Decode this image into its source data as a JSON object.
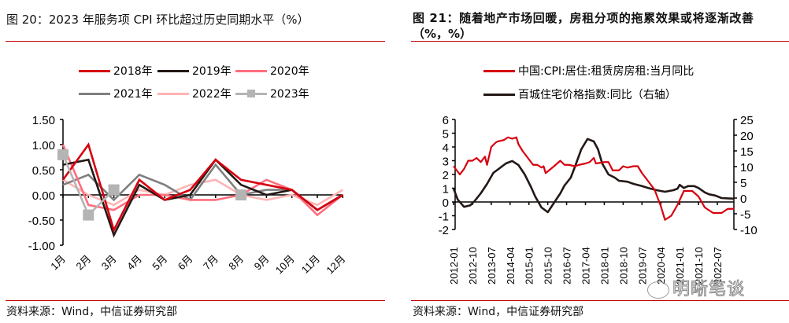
{
  "left_panel": {
    "title": "图 20：2023 年服务项 CPI 环比超过历史同期水平（%）",
    "source": "资料来源：Wind，中信证券研究部"
  },
  "right_panel": {
    "title_line1": "图  21：随着地产市场回暖，房租分项的拖累效果或将逐渐改善",
    "title_line2": "（%，%）",
    "source": "资料来源：Wind，中信证券研究部",
    "watermark": "明晰笔谈"
  },
  "chart_data": [
    {
      "type": "line",
      "title": "2023 年服务项 CPI 环比超过历史同期水平（%）",
      "categories": [
        "1月",
        "2月",
        "3月",
        "4月",
        "5月",
        "6月",
        "7月",
        "8月",
        "9月",
        "10月",
        "11月",
        "12月"
      ],
      "ylim": [
        -1.0,
        1.5
      ],
      "yticks": [
        "1.50",
        "1.00",
        "0.50",
        "0.00",
        "-0.50",
        "-1.00"
      ],
      "ytick_values": [
        1.5,
        1.0,
        0.5,
        0.0,
        -0.5,
        -1.0
      ],
      "legend_position": "top",
      "series": [
        {
          "name": "2018年",
          "color": "#d7000f",
          "values": [
            0.3,
            1.0,
            -0.7,
            0.3,
            -0.1,
            0.1,
            0.7,
            0.3,
            0.2,
            0.1,
            -0.3,
            0.0
          ]
        },
        {
          "name": "2019年",
          "color": "#231815",
          "values": [
            0.6,
            0.7,
            -0.8,
            0.2,
            -0.1,
            0.0,
            0.7,
            0.2,
            0.0,
            0.1,
            -0.3,
            0.0
          ]
        },
        {
          "name": "2020年",
          "color": "#ff6e7f",
          "values": [
            1.0,
            -0.2,
            -0.3,
            0.0,
            0.0,
            -0.1,
            -0.1,
            0.0,
            0.3,
            0.1,
            -0.4,
            0.0
          ]
        },
        {
          "name": "2021年",
          "color": "#7f7f7f",
          "values": [
            0.2,
            0.4,
            -0.1,
            0.4,
            0.2,
            -0.1,
            0.6,
            0.0,
            0.1,
            0.1,
            -0.3,
            0.0
          ]
        },
        {
          "name": "2022年",
          "color": "#ffb4b4",
          "values": [
            0.3,
            0.0,
            -0.2,
            0.1,
            0.0,
            0.2,
            0.3,
            0.0,
            -0.1,
            0.0,
            -0.2,
            0.1
          ]
        },
        {
          "name": "2023年",
          "color": "#b4b4b4",
          "marker": "square",
          "values": [
            0.8,
            -0.4,
            0.1,
            null,
            null,
            null,
            null,
            0.0,
            null,
            null,
            null,
            null
          ]
        }
      ]
    },
    {
      "type": "line",
      "title": "随着地产市场回暖，房租分项的拖累效果或将逐渐改善（%，%）",
      "xticks": [
        "2012-01",
        "2012-10",
        "2013-07",
        "2014-04",
        "2015-01",
        "2015-10",
        "2016-07",
        "2017-04",
        "2018-01",
        "2018-10",
        "2019-07",
        "2020-04",
        "2021-01",
        "2021-10",
        "2022-07"
      ],
      "ylim_left": [
        -2,
        6
      ],
      "yticks_left": [
        6,
        5,
        4,
        3,
        2,
        1,
        0,
        -1,
        -2
      ],
      "ylim_right": [
        -10,
        25
      ],
      "yticks_right": [
        25,
        20,
        15,
        10,
        5,
        0,
        -5,
        -10
      ],
      "legend_position": "top",
      "series": [
        {
          "name": "中国:CPI:居住:租赁房房租:当月同比",
          "axis": "left",
          "color": "#d7000f",
          "x": [
            "2012-01",
            "2012-04",
            "2012-06",
            "2012-08",
            "2012-10",
            "2012-12",
            "2013-02",
            "2013-04",
            "2013-05",
            "2013-07",
            "2013-09",
            "2013-10",
            "2014-01",
            "2014-03",
            "2014-05",
            "2014-07",
            "2014-08",
            "2014-10",
            "2015-01",
            "2015-03",
            "2015-05",
            "2015-07",
            "2015-08",
            "2015-09",
            "2016-01",
            "2016-04",
            "2016-06",
            "2016-08",
            "2016-11",
            "2017-01",
            "2017-04",
            "2017-06",
            "2017-08",
            "2017-09",
            "2018-01",
            "2018-03",
            "2018-05",
            "2018-08",
            "2018-10",
            "2018-12",
            "2019-03",
            "2019-05",
            "2019-07",
            "2019-10",
            "2020-01",
            "2020-04",
            "2020-06",
            "2020-09",
            "2020-12",
            "2021-03",
            "2021-07",
            "2021-10",
            "2022-01",
            "2022-05",
            "2022-09",
            "2022-12",
            "2023-03"
          ],
          "values": [
            2.6,
            2.0,
            2.4,
            3.0,
            3.0,
            3.2,
            2.9,
            3.3,
            2.7,
            4.0,
            4.3,
            4.4,
            4.5,
            4.7,
            4.6,
            4.7,
            4.2,
            3.7,
            3.1,
            2.7,
            2.7,
            2.5,
            2.6,
            2.1,
            2.6,
            3.0,
            2.7,
            2.7,
            2.6,
            2.7,
            2.8,
            2.9,
            3.2,
            2.8,
            2.9,
            2.9,
            2.3,
            2.3,
            2.6,
            2.5,
            2.6,
            2.6,
            2.1,
            1.5,
            0.9,
            -0.3,
            -1.3,
            -1.0,
            -0.2,
            0.8,
            0.8,
            0.4,
            -0.4,
            -0.8,
            -0.8,
            -0.5,
            -0.5
          ]
        },
        {
          "name": "百城住宅价格指数:同比（右轴）",
          "axis": "right",
          "color": "#231815",
          "x": [
            "2012-01",
            "2012-03",
            "2012-06",
            "2012-09",
            "2012-11",
            "2013-02",
            "2013-05",
            "2013-08",
            "2013-11",
            "2014-02",
            "2014-05",
            "2014-08",
            "2014-11",
            "2015-02",
            "2015-04",
            "2015-07",
            "2015-10",
            "2016-01",
            "2016-04",
            "2016-06",
            "2016-09",
            "2016-11",
            "2017-02",
            "2017-05",
            "2017-08",
            "2017-10",
            "2017-12",
            "2018-03",
            "2018-06",
            "2018-08",
            "2018-12",
            "2019-03",
            "2019-07",
            "2019-10",
            "2020-02",
            "2020-06",
            "2020-10",
            "2020-12",
            "2021-01",
            "2021-03",
            "2021-05",
            "2021-08",
            "2021-10",
            "2022-01",
            "2022-03",
            "2022-06",
            "2022-09",
            "2022-12",
            "2023-03"
          ],
          "values": [
            3,
            -0.5,
            -2.8,
            -2.3,
            -1.0,
            1.5,
            4.5,
            8.0,
            9.5,
            11.0,
            11.8,
            10.5,
            7.5,
            3.5,
            0.5,
            -3.0,
            -4.5,
            -1.5,
            1.5,
            4.0,
            6.5,
            10.0,
            15.5,
            18.8,
            18.0,
            15.5,
            11.0,
            7.5,
            6.5,
            5.5,
            5.2,
            4.5,
            3.8,
            3.2,
            2.5,
            2.0,
            2.5,
            3.0,
            4.2,
            3.2,
            3.8,
            3.8,
            3.2,
            1.8,
            1.2,
            0.8,
            0.0,
            -0.1,
            -0.2
          ]
        }
      ]
    }
  ]
}
